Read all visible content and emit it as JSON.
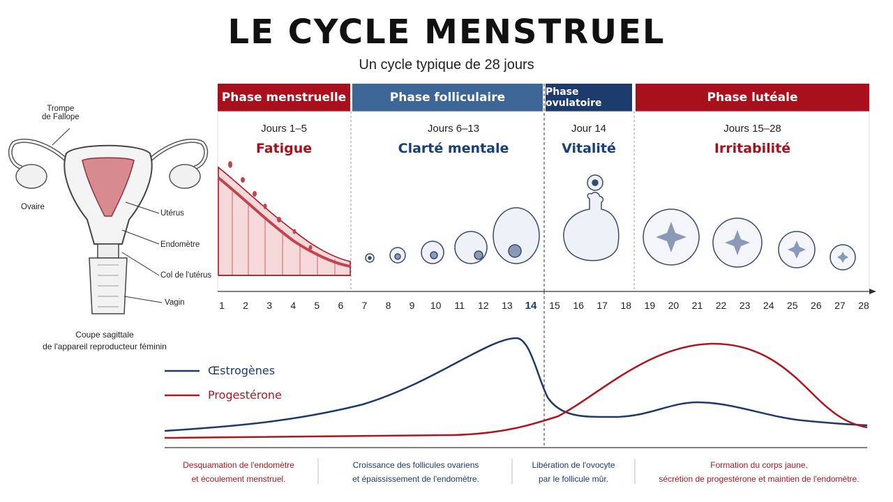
{
  "title": "LE CYCLE MENSTRUEL",
  "subtitle": "Un cycle typique de 28 jours",
  "anatomy": {
    "labels": {
      "trompe": "Trompe\nde Fallope",
      "ovaire": "Ovaire",
      "uterus": "Utérus",
      "endometre": "Endomètre",
      "col": "Col de l'utérus",
      "vagin": "Vagin"
    },
    "caption": "Coupe sagittale\nde l'appareil reproducteur féminin"
  },
  "phases": [
    {
      "name": "Phase menstruelle",
      "days": "Jours 1–5",
      "trait": "Fatigue",
      "color": "#a8101c",
      "description": "Desquamation de l'endomètre\net écoulement menstruel."
    },
    {
      "name": "Phase folliculaire",
      "days": "Jours 6–13",
      "trait": "Clarté mentale",
      "color": "#3d6596",
      "description": "Croissance des follicules ovariens\net épaississement de l'endomètre."
    },
    {
      "name": "Phase ovulatoire",
      "days": "Jour 14",
      "trait": "Vitalité",
      "color": "#1d3a6c",
      "description": "Libération de l'ovocyte\npar le follicule mûr."
    },
    {
      "name": "Phase lutéale",
      "days": "Jours 15–28",
      "trait": "Irritabilité",
      "color": "#a8101c",
      "description": "Formation du corps jaune,\nsécrétion de progestérone et maintien de l'endomètre."
    }
  ],
  "days_axis": [
    "1",
    "2",
    "3",
    "4",
    "5",
    "6",
    "7",
    "8",
    "9",
    "10",
    "11",
    "12",
    "13",
    "14",
    "15",
    "16",
    "17",
    "18",
    "19",
    "20",
    "21",
    "22",
    "23",
    "24",
    "25",
    "26",
    "27",
    "28"
  ],
  "ovulation_day": "14",
  "hormones": {
    "estrogen": {
      "label": "Œstrogènes",
      "color": "#1d3a6c"
    },
    "progesterone": {
      "label": "Progestérone",
      "color": "#b0141f"
    }
  }
}
